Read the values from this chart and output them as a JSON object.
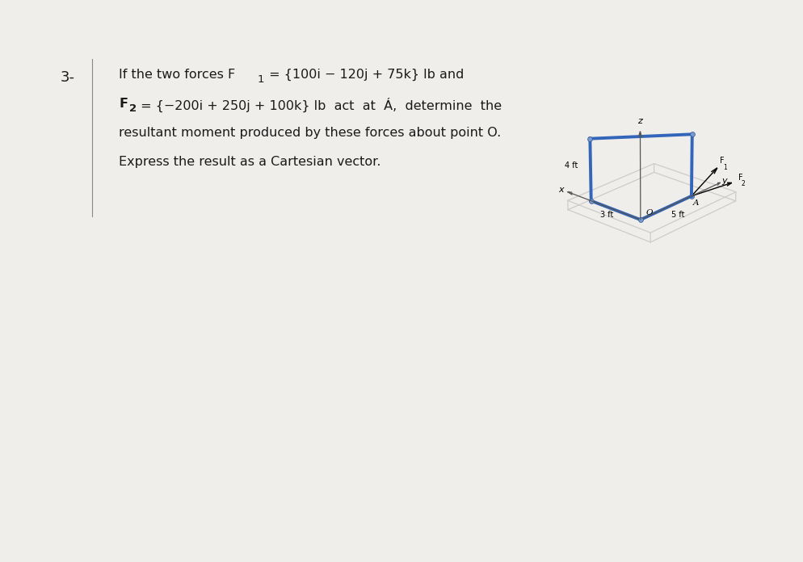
{
  "background_color": "#f0eeea",
  "problem_number": "3-",
  "line1": "If the two forces F",
  "line1_sub1": "1",
  "line1_rest": " = {100i − 120j + 75k} lb and",
  "line2a": "F",
  "line2_sub": "2",
  "line2b": " = {−200i + 250j + 100k} lb  act  at  A,  determine  the",
  "line3": "resultant moment produced by these forces about point O.",
  "line4": "Express the result as a Cartesian vector.",
  "label_4ft": "4 ft",
  "label_3ft": "3 ft",
  "label_5ft": "5 ft",
  "label_O": "O",
  "label_A": "A",
  "label_F1": "F",
  "label_F2": "F",
  "label_x": "x",
  "label_y": "y",
  "label_z": "z",
  "arm_color": "#3366bb",
  "box_color": "#cccccc",
  "axis_color": "#555555",
  "text_color": "#1a1a1a",
  "text_fontsize": 11.5,
  "problem_num_fontsize": 13,
  "elev": 22,
  "azim": -48
}
